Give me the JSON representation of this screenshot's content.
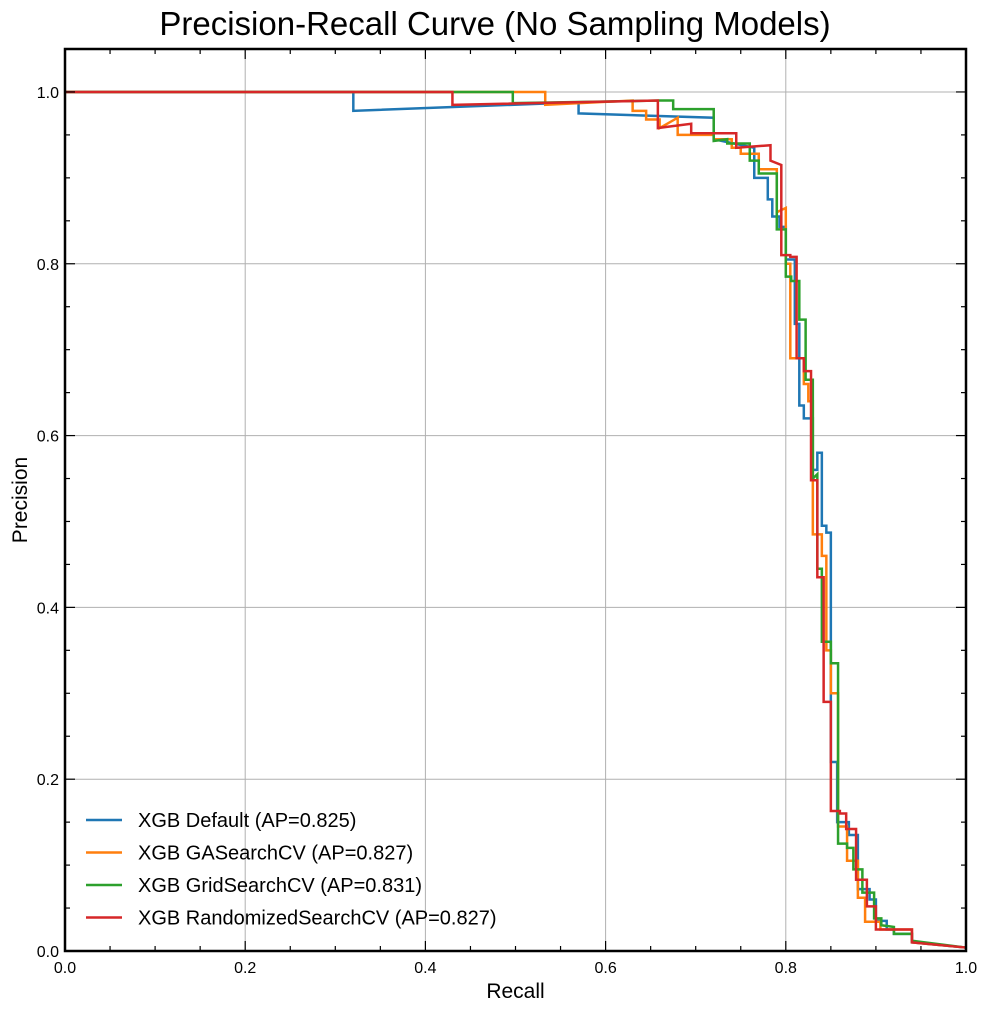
{
  "chart_data": {
    "type": "line",
    "title": "Precision-Recall Curve (No Sampling Models)",
    "xlabel": "Recall",
    "ylabel": "Precision",
    "xlim": [
      0,
      1
    ],
    "ylim": [
      0,
      1.05
    ],
    "xticks": [
      "0.0",
      "0.2",
      "0.4",
      "0.6",
      "0.8",
      "1.0"
    ],
    "yticks": [
      "0.0",
      "0.2",
      "0.4",
      "0.6",
      "0.8",
      "1.0"
    ],
    "grid": true,
    "legend_position": "lower-left",
    "step": true,
    "series": [
      {
        "name": "XGB Default (AP=0.825)",
        "color": "#1f77b4",
        "points": [
          [
            0,
            1.0
          ],
          [
            0.32,
            1.0
          ],
          [
            0.32,
            0.978
          ],
          [
            0.57,
            0.988
          ],
          [
            0.57,
            0.975
          ],
          [
            0.72,
            0.97
          ],
          [
            0.72,
            0.945
          ],
          [
            0.765,
            0.935
          ],
          [
            0.765,
            0.9
          ],
          [
            0.78,
            0.9
          ],
          [
            0.78,
            0.875
          ],
          [
            0.785,
            0.875
          ],
          [
            0.785,
            0.855
          ],
          [
            0.793,
            0.855
          ],
          [
            0.793,
            0.843
          ],
          [
            0.8,
            0.843
          ],
          [
            0.8,
            0.805
          ],
          [
            0.81,
            0.805
          ],
          [
            0.81,
            0.73
          ],
          [
            0.815,
            0.73
          ],
          [
            0.815,
            0.635
          ],
          [
            0.82,
            0.635
          ],
          [
            0.82,
            0.62
          ],
          [
            0.83,
            0.62
          ],
          [
            0.83,
            0.56
          ],
          [
            0.835,
            0.56
          ],
          [
            0.835,
            0.58
          ],
          [
            0.84,
            0.58
          ],
          [
            0.84,
            0.495
          ],
          [
            0.845,
            0.495
          ],
          [
            0.845,
            0.487
          ],
          [
            0.85,
            0.487
          ],
          [
            0.85,
            0.22
          ],
          [
            0.857,
            0.22
          ],
          [
            0.857,
            0.15
          ],
          [
            0.87,
            0.15
          ],
          [
            0.87,
            0.135
          ],
          [
            0.88,
            0.135
          ],
          [
            0.88,
            0.072
          ],
          [
            0.893,
            0.072
          ],
          [
            0.893,
            0.06
          ],
          [
            0.9,
            0.06
          ],
          [
            0.9,
            0.035
          ],
          [
            0.912,
            0.035
          ],
          [
            0.912,
            0.025
          ],
          [
            0.92,
            0.025
          ],
          [
            0.92,
            0.02
          ],
          [
            0.94,
            0.02
          ],
          [
            0.94,
            0.01
          ],
          [
            0.96,
            0.008
          ],
          [
            1.0,
            0.004
          ]
        ]
      },
      {
        "name": "XGB GASearchCV (AP=0.827)",
        "color": "#ff7f0e",
        "points": [
          [
            0,
            1.0
          ],
          [
            0.533,
            1.0
          ],
          [
            0.533,
            0.985
          ],
          [
            0.63,
            0.99
          ],
          [
            0.63,
            0.978
          ],
          [
            0.645,
            0.978
          ],
          [
            0.645,
            0.968
          ],
          [
            0.66,
            0.968
          ],
          [
            0.66,
            0.958
          ],
          [
            0.68,
            0.97
          ],
          [
            0.68,
            0.95
          ],
          [
            0.72,
            0.95
          ],
          [
            0.72,
            0.945
          ],
          [
            0.74,
            0.945
          ],
          [
            0.74,
            0.935
          ],
          [
            0.75,
            0.935
          ],
          [
            0.75,
            0.928
          ],
          [
            0.77,
            0.928
          ],
          [
            0.77,
            0.91
          ],
          [
            0.79,
            0.91
          ],
          [
            0.79,
            0.86
          ],
          [
            0.8,
            0.865
          ],
          [
            0.8,
            0.8
          ],
          [
            0.805,
            0.8
          ],
          [
            0.805,
            0.69
          ],
          [
            0.82,
            0.69
          ],
          [
            0.82,
            0.66
          ],
          [
            0.825,
            0.66
          ],
          [
            0.825,
            0.64
          ],
          [
            0.83,
            0.64
          ],
          [
            0.83,
            0.485
          ],
          [
            0.84,
            0.485
          ],
          [
            0.84,
            0.46
          ],
          [
            0.845,
            0.46
          ],
          [
            0.845,
            0.35
          ],
          [
            0.85,
            0.35
          ],
          [
            0.85,
            0.3
          ],
          [
            0.858,
            0.3
          ],
          [
            0.858,
            0.145
          ],
          [
            0.868,
            0.145
          ],
          [
            0.868,
            0.105
          ],
          [
            0.88,
            0.105
          ],
          [
            0.88,
            0.062
          ],
          [
            0.888,
            0.062
          ],
          [
            0.888,
            0.034
          ],
          [
            0.905,
            0.034
          ],
          [
            0.905,
            0.025
          ],
          [
            0.94,
            0.025
          ],
          [
            0.94,
            0.01
          ],
          [
            1.0,
            0.004
          ]
        ]
      },
      {
        "name": "XGB GridSearchCV (AP=0.831)",
        "color": "#2ca02c",
        "points": [
          [
            0,
            1.0
          ],
          [
            0.497,
            1.0
          ],
          [
            0.497,
            0.987
          ],
          [
            0.66,
            0.99
          ],
          [
            0.675,
            0.99
          ],
          [
            0.675,
            0.98
          ],
          [
            0.72,
            0.98
          ],
          [
            0.72,
            0.943
          ],
          [
            0.735,
            0.945
          ],
          [
            0.735,
            0.94
          ],
          [
            0.76,
            0.94
          ],
          [
            0.76,
            0.92
          ],
          [
            0.77,
            0.92
          ],
          [
            0.77,
            0.905
          ],
          [
            0.79,
            0.905
          ],
          [
            0.79,
            0.84
          ],
          [
            0.8,
            0.84
          ],
          [
            0.8,
            0.785
          ],
          [
            0.806,
            0.785
          ],
          [
            0.806,
            0.78
          ],
          [
            0.815,
            0.78
          ],
          [
            0.815,
            0.735
          ],
          [
            0.822,
            0.735
          ],
          [
            0.822,
            0.665
          ],
          [
            0.83,
            0.665
          ],
          [
            0.83,
            0.55
          ],
          [
            0.835,
            0.555
          ],
          [
            0.835,
            0.445
          ],
          [
            0.84,
            0.445
          ],
          [
            0.84,
            0.36
          ],
          [
            0.85,
            0.36
          ],
          [
            0.85,
            0.335
          ],
          [
            0.858,
            0.335
          ],
          [
            0.858,
            0.125
          ],
          [
            0.868,
            0.125
          ],
          [
            0.868,
            0.12
          ],
          [
            0.875,
            0.12
          ],
          [
            0.875,
            0.095
          ],
          [
            0.885,
            0.095
          ],
          [
            0.885,
            0.068
          ],
          [
            0.898,
            0.068
          ],
          [
            0.898,
            0.038
          ],
          [
            0.906,
            0.038
          ],
          [
            0.906,
            0.03
          ],
          [
            0.92,
            0.028
          ],
          [
            0.92,
            0.02
          ],
          [
            0.94,
            0.02
          ],
          [
            0.94,
            0.012
          ],
          [
            1.0,
            0.004
          ]
        ]
      },
      {
        "name": "XGB RandomizedSearchCV (AP=0.827)",
        "color": "#d62728",
        "points": [
          [
            0,
            1.0
          ],
          [
            0.43,
            1.0
          ],
          [
            0.43,
            0.985
          ],
          [
            0.658,
            0.99
          ],
          [
            0.658,
            0.958
          ],
          [
            0.695,
            0.963
          ],
          [
            0.695,
            0.952
          ],
          [
            0.745,
            0.952
          ],
          [
            0.745,
            0.935
          ],
          [
            0.783,
            0.938
          ],
          [
            0.783,
            0.92
          ],
          [
            0.795,
            0.915
          ],
          [
            0.795,
            0.81
          ],
          [
            0.805,
            0.81
          ],
          [
            0.805,
            0.808
          ],
          [
            0.812,
            0.808
          ],
          [
            0.812,
            0.69
          ],
          [
            0.82,
            0.69
          ],
          [
            0.82,
            0.675
          ],
          [
            0.828,
            0.675
          ],
          [
            0.828,
            0.548
          ],
          [
            0.835,
            0.548
          ],
          [
            0.835,
            0.435
          ],
          [
            0.842,
            0.435
          ],
          [
            0.842,
            0.29
          ],
          [
            0.85,
            0.29
          ],
          [
            0.85,
            0.163
          ],
          [
            0.86,
            0.163
          ],
          [
            0.86,
            0.16
          ],
          [
            0.867,
            0.16
          ],
          [
            0.867,
            0.142
          ],
          [
            0.878,
            0.142
          ],
          [
            0.878,
            0.083
          ],
          [
            0.89,
            0.083
          ],
          [
            0.89,
            0.052
          ],
          [
            0.9,
            0.052
          ],
          [
            0.9,
            0.025
          ],
          [
            0.94,
            0.025
          ],
          [
            0.94,
            0.01
          ],
          [
            1.0,
            0.004
          ]
        ]
      }
    ]
  }
}
